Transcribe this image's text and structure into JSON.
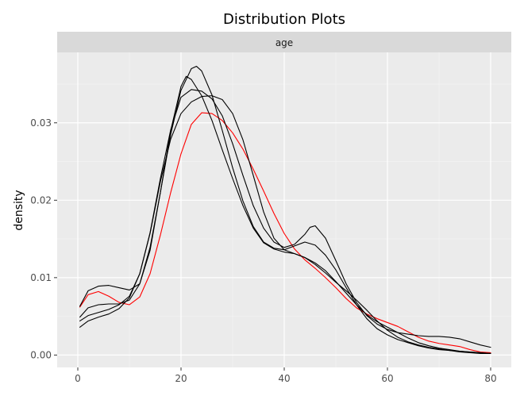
{
  "chart_data": {
    "type": "line",
    "title": "Distribution Plots",
    "facet_label": "age",
    "xlabel": "",
    "ylabel": "density",
    "xlim": [
      -4,
      84
    ],
    "ylim": [
      -0.0016,
      0.0391
    ],
    "x_ticks": [
      0,
      20,
      40,
      60,
      80
    ],
    "y_ticks": [
      0.0,
      0.01,
      0.02,
      0.03
    ],
    "y_tick_labels": [
      "0.00",
      "0.01",
      "0.02",
      "0.03"
    ],
    "grid": true,
    "series": [
      {
        "color": "#ff0000",
        "points": [
          [
            0.4,
            0.0062
          ],
          [
            2,
            0.0078
          ],
          [
            4,
            0.0082
          ],
          [
            6,
            0.0076
          ],
          [
            8,
            0.0068
          ],
          [
            10,
            0.0065
          ],
          [
            12,
            0.0075
          ],
          [
            14,
            0.0105
          ],
          [
            16,
            0.0155
          ],
          [
            18,
            0.021
          ],
          [
            20,
            0.026
          ],
          [
            22,
            0.0298
          ],
          [
            24,
            0.0313
          ],
          [
            26,
            0.0312
          ],
          [
            28,
            0.0303
          ],
          [
            30,
            0.0287
          ],
          [
            32,
            0.0266
          ],
          [
            34,
            0.024
          ],
          [
            36,
            0.0212
          ],
          [
            38,
            0.0183
          ],
          [
            40,
            0.0157
          ],
          [
            42,
            0.0137
          ],
          [
            44,
            0.0123
          ],
          [
            46,
            0.0112
          ],
          [
            48,
            0.01
          ],
          [
            50,
            0.0087
          ],
          [
            52,
            0.0073
          ],
          [
            54,
            0.0061
          ],
          [
            56,
            0.0053
          ],
          [
            58,
            0.0047
          ],
          [
            60,
            0.0042
          ],
          [
            62,
            0.0037
          ],
          [
            64,
            0.003
          ],
          [
            66,
            0.0023
          ],
          [
            68,
            0.0018
          ],
          [
            70,
            0.0015
          ],
          [
            72,
            0.0013
          ],
          [
            74,
            0.0011
          ],
          [
            76,
            0.0007
          ],
          [
            78,
            0.0004
          ],
          [
            80,
            0.0003
          ]
        ]
      },
      {
        "color": "#000000",
        "points": [
          [
            0.4,
            0.0063
          ],
          [
            2,
            0.0083
          ],
          [
            4,
            0.0089
          ],
          [
            6,
            0.009
          ],
          [
            8,
            0.0087
          ],
          [
            10,
            0.0084
          ],
          [
            12,
            0.0092
          ],
          [
            14,
            0.0135
          ],
          [
            16,
            0.021
          ],
          [
            18,
            0.029
          ],
          [
            20,
            0.0347
          ],
          [
            21,
            0.036
          ],
          [
            22,
            0.0356
          ],
          [
            24,
            0.0335
          ],
          [
            26,
            0.0303
          ],
          [
            28,
            0.0265
          ],
          [
            30,
            0.0228
          ],
          [
            32,
            0.0193
          ],
          [
            34,
            0.0164
          ],
          [
            36,
            0.0145
          ],
          [
            38,
            0.0137
          ],
          [
            40,
            0.0133
          ],
          [
            42,
            0.0131
          ],
          [
            44,
            0.0126
          ],
          [
            46,
            0.0119
          ],
          [
            48,
            0.0109
          ],
          [
            50,
            0.0095
          ],
          [
            52,
            0.008
          ],
          [
            54,
            0.0065
          ],
          [
            56,
            0.0052
          ],
          [
            58,
            0.0043
          ],
          [
            60,
            0.0036
          ],
          [
            62,
            0.0029
          ],
          [
            64,
            0.0022
          ],
          [
            66,
            0.0016
          ],
          [
            68,
            0.0012
          ],
          [
            70,
            0.0009
          ],
          [
            72,
            0.0007
          ],
          [
            74,
            0.0005
          ],
          [
            76,
            0.0004
          ],
          [
            78,
            0.0003
          ],
          [
            80,
            0.0002
          ]
        ]
      },
      {
        "color": "#000000",
        "points": [
          [
            0.4,
            0.0049
          ],
          [
            2,
            0.0061
          ],
          [
            4,
            0.0065
          ],
          [
            6,
            0.0066
          ],
          [
            8,
            0.0066
          ],
          [
            10,
            0.0071
          ],
          [
            12,
            0.0092
          ],
          [
            14,
            0.0139
          ],
          [
            16,
            0.021
          ],
          [
            18,
            0.0285
          ],
          [
            20,
            0.0342
          ],
          [
            22,
            0.037
          ],
          [
            23,
            0.0373
          ],
          [
            24,
            0.0367
          ],
          [
            26,
            0.0336
          ],
          [
            28,
            0.029
          ],
          [
            30,
            0.0242
          ],
          [
            32,
            0.0199
          ],
          [
            34,
            0.0166
          ],
          [
            36,
            0.0146
          ],
          [
            38,
            0.0138
          ],
          [
            40,
            0.0136
          ],
          [
            42,
            0.0141
          ],
          [
            44,
            0.0146
          ],
          [
            46,
            0.0142
          ],
          [
            48,
            0.0129
          ],
          [
            50,
            0.011
          ],
          [
            52,
            0.0087
          ],
          [
            54,
            0.0065
          ],
          [
            56,
            0.0047
          ],
          [
            58,
            0.0034
          ],
          [
            60,
            0.0026
          ],
          [
            62,
            0.002
          ],
          [
            64,
            0.0016
          ],
          [
            66,
            0.0012
          ],
          [
            68,
            0.0009
          ],
          [
            70,
            0.0007
          ],
          [
            72,
            0.0006
          ],
          [
            74,
            0.0005
          ],
          [
            76,
            0.0004
          ],
          [
            78,
            0.0003
          ],
          [
            80,
            0.0002
          ]
        ]
      },
      {
        "color": "#000000",
        "points": [
          [
            0.4,
            0.0044
          ],
          [
            2,
            0.0051
          ],
          [
            4,
            0.0055
          ],
          [
            6,
            0.0059
          ],
          [
            8,
            0.0065
          ],
          [
            10,
            0.0076
          ],
          [
            12,
            0.0105
          ],
          [
            14,
            0.0158
          ],
          [
            16,
            0.0228
          ],
          [
            18,
            0.0291
          ],
          [
            20,
            0.0333
          ],
          [
            22,
            0.0343
          ],
          [
            24,
            0.0341
          ],
          [
            26,
            0.0331
          ],
          [
            28,
            0.0309
          ],
          [
            30,
            0.0273
          ],
          [
            32,
            0.0232
          ],
          [
            34,
            0.0193
          ],
          [
            36,
            0.0164
          ],
          [
            38,
            0.0146
          ],
          [
            40,
            0.0139
          ],
          [
            42,
            0.0143
          ],
          [
            44,
            0.0156
          ],
          [
            45,
            0.0165
          ],
          [
            46,
            0.0167
          ],
          [
            48,
            0.0151
          ],
          [
            50,
            0.0122
          ],
          [
            52,
            0.0092
          ],
          [
            54,
            0.0068
          ],
          [
            56,
            0.0051
          ],
          [
            58,
            0.004
          ],
          [
            60,
            0.0033
          ],
          [
            62,
            0.0029
          ],
          [
            64,
            0.0027
          ],
          [
            66,
            0.0025
          ],
          [
            68,
            0.0024
          ],
          [
            70,
            0.0024
          ],
          [
            72,
            0.0023
          ],
          [
            74,
            0.0021
          ],
          [
            76,
            0.0017
          ],
          [
            78,
            0.0013
          ],
          [
            80,
            0.001
          ]
        ]
      },
      {
        "color": "#000000",
        "points": [
          [
            0.4,
            0.0036
          ],
          [
            2,
            0.0044
          ],
          [
            4,
            0.0049
          ],
          [
            6,
            0.0053
          ],
          [
            8,
            0.006
          ],
          [
            10,
            0.0074
          ],
          [
            12,
            0.0105
          ],
          [
            14,
            0.0157
          ],
          [
            16,
            0.0224
          ],
          [
            18,
            0.0279
          ],
          [
            20,
            0.0312
          ],
          [
            22,
            0.0327
          ],
          [
            24,
            0.0334
          ],
          [
            26,
            0.0335
          ],
          [
            28,
            0.033
          ],
          [
            30,
            0.0312
          ],
          [
            32,
            0.0278
          ],
          [
            34,
            0.0232
          ],
          [
            36,
            0.0185
          ],
          [
            38,
            0.0151
          ],
          [
            40,
            0.0136
          ],
          [
            42,
            0.0131
          ],
          [
            44,
            0.0126
          ],
          [
            46,
            0.0117
          ],
          [
            48,
            0.0106
          ],
          [
            50,
            0.0094
          ],
          [
            52,
            0.0083
          ],
          [
            54,
            0.0071
          ],
          [
            56,
            0.0058
          ],
          [
            58,
            0.0044
          ],
          [
            60,
            0.0032
          ],
          [
            62,
            0.0023
          ],
          [
            64,
            0.0017
          ],
          [
            66,
            0.0013
          ],
          [
            68,
            0.001
          ],
          [
            70,
            0.0008
          ],
          [
            72,
            0.0006
          ],
          [
            74,
            0.0004
          ],
          [
            76,
            0.0003
          ],
          [
            78,
            0.0002
          ],
          [
            80,
            0.0002
          ]
        ]
      }
    ]
  }
}
